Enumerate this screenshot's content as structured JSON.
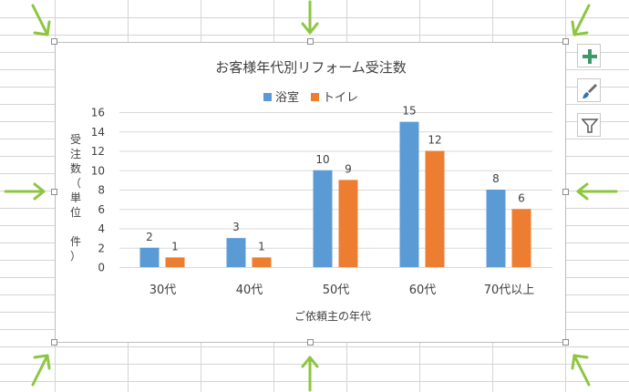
{
  "chart_data": {
    "type": "bar",
    "title": "お客様年代別リフォーム受注数",
    "categories": [
      "30代",
      "40代",
      "50代",
      "60代",
      "70代以上"
    ],
    "series": [
      {
        "name": "浴室",
        "values": [
          2,
          3,
          10,
          15,
          8
        ],
        "color": "#5b9bd5"
      },
      {
        "name": "トイレ",
        "values": [
          1,
          1,
          9,
          12,
          6
        ],
        "color": "#ed7d31"
      }
    ],
    "xlabel": "ご依頼主の年代",
    "ylabel": "受注数（単位 件）",
    "ylabel_chars": [
      "受",
      "注",
      "数",
      "（",
      "単",
      "位",
      "　",
      "件",
      "）"
    ],
    "ylim": [
      0,
      16
    ],
    "yticks": [
      0,
      2,
      4,
      6,
      8,
      10,
      12,
      14,
      16
    ],
    "grid": true,
    "legend": "top"
  },
  "chart_tools": {
    "add_element_icon": "plus-icon",
    "style_icon": "paintbrush-icon",
    "filter_icon": "filter-icon"
  },
  "colors": {
    "arrow": "#8dc63f",
    "grid": "#d9d9d9",
    "text": "#404040"
  }
}
